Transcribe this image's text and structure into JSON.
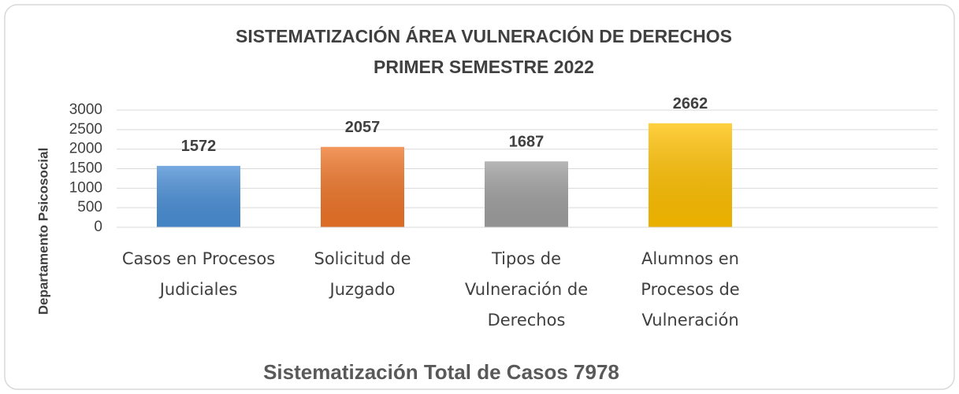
{
  "chart_data": {
    "type": "bar",
    "title": "SISTEMATIZACIÓN ÁREA VULNERACIÓN DE DERECHOS",
    "subtitle": "PRIMER SEMESTRE 2022",
    "y_label": "Departamento Psicosocial",
    "x_label": "Sistematización Total de Casos 7978",
    "categories": [
      "Casos en Procesos Judiciales",
      "Solicitud de Juzgado",
      "Tipos de Vulneración de Derechos",
      "Alumnos en Procesos de Vulneración"
    ],
    "values": [
      1572,
      2057,
      1687,
      2662
    ],
    "colors": [
      "#4a8fd6",
      "#ee7528",
      "#9f9f9f",
      "#ffc000"
    ],
    "ylim": [
      0,
      3000
    ],
    "yticks": [
      0,
      500,
      1000,
      1500,
      2000,
      2500,
      3000
    ],
    "grid": true
  }
}
